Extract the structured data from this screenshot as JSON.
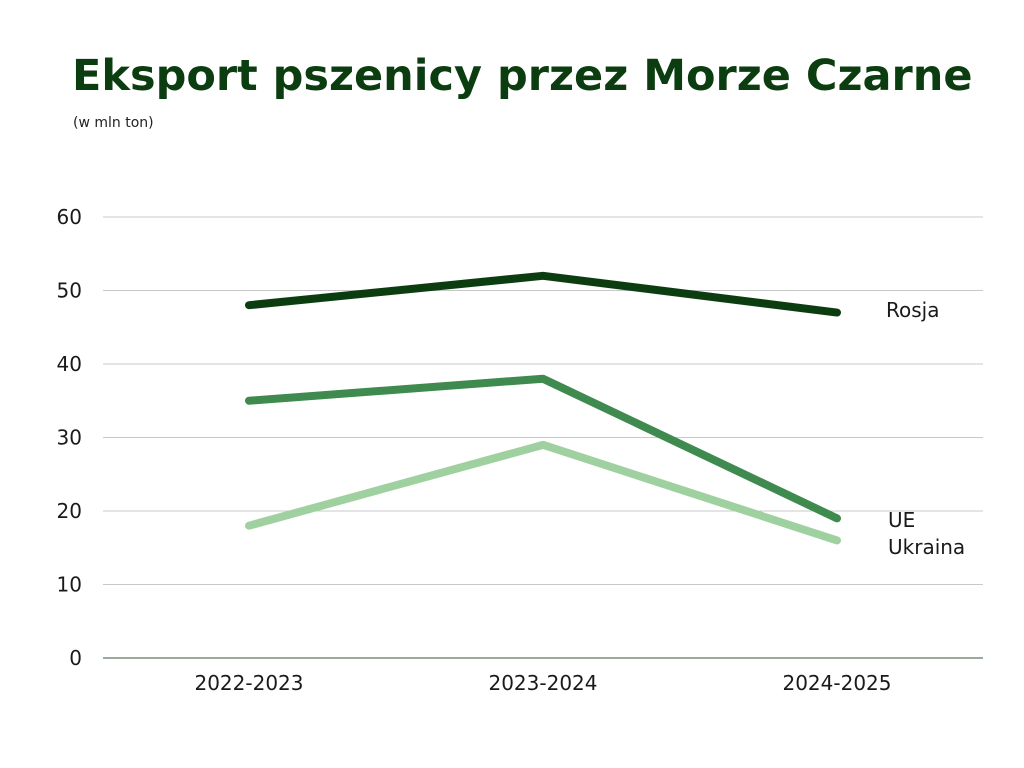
{
  "title": "Eksport pszenicy przez Morze Czarne",
  "subtitle": "(w mln ton)",
  "chart_data": {
    "type": "line",
    "title": "Eksport pszenicy przez Morze Czarne",
    "subtitle": "(w mln ton)",
    "categories": [
      "2022-2023",
      "2023-2024",
      "2024-2025"
    ],
    "ylim": [
      0,
      60
    ],
    "yticks": [
      0,
      10,
      20,
      30,
      40,
      50,
      60
    ],
    "grid": true,
    "legend": "direct labels at right end of lines",
    "series": [
      {
        "name": "Rosja",
        "values": [
          48,
          52,
          47
        ],
        "color": "#0b3d10"
      },
      {
        "name": "UE",
        "values": [
          35,
          38,
          19
        ],
        "color": "#3f8a4f"
      },
      {
        "name": "Ukraina",
        "values": [
          18,
          29,
          16
        ],
        "color": "#9fd1a0"
      }
    ],
    "colors": {
      "title": "#0b3d10",
      "grid": "#c8c8c8",
      "axis": "#7a8f7a"
    }
  }
}
